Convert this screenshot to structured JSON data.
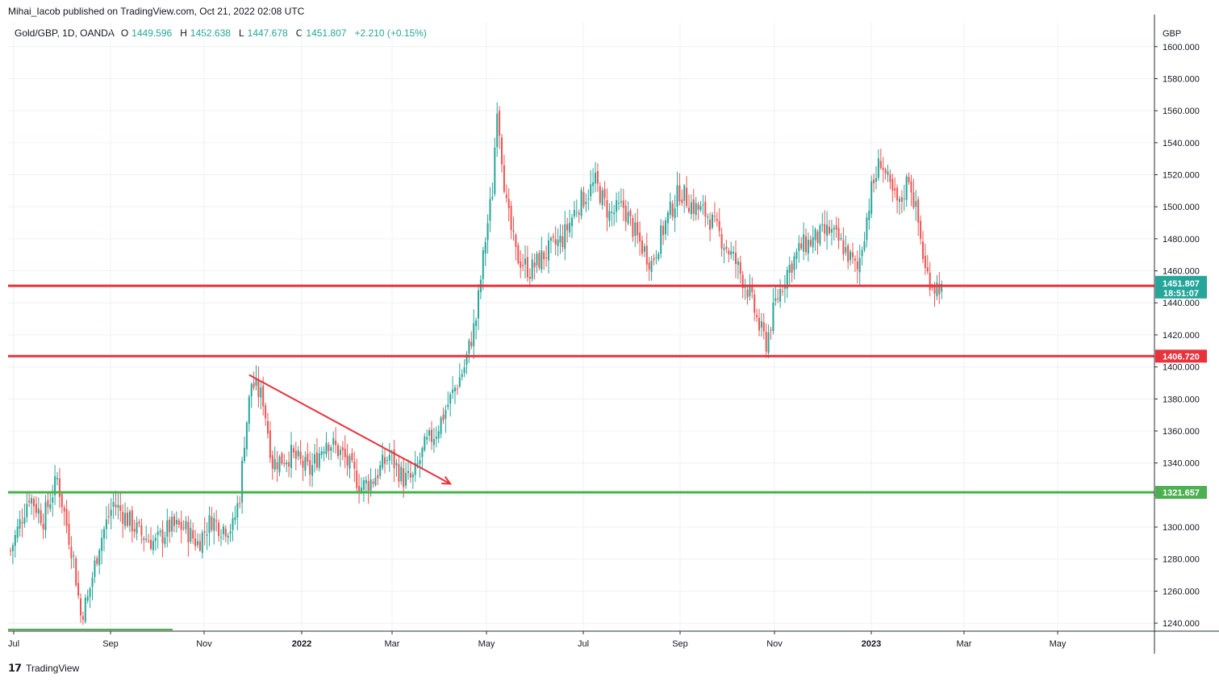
{
  "publisher": "Mihai_Iacob published on TradingView.com, Oct 21, 2022 02:08 UTC",
  "legend": {
    "symbol": "Gold/GBP, 1D, OANDA",
    "open_label": "O",
    "open": "1449.596",
    "high_label": "H",
    "high": "1452.638",
    "low_label": "L",
    "low": "1447.678",
    "close_label": "C",
    "close": "1451.807",
    "change": "+2.210 (+0.15%)"
  },
  "brand": "TradingView",
  "colors": {
    "up": "#26a69a",
    "down": "#ef5350",
    "line_red": "#e8323c",
    "line_green": "#4caf50",
    "grid": "#edf0f5",
    "axis_border": "#2a2e39"
  },
  "chart_data": {
    "type": "candlestick",
    "currency_label": "GBP",
    "ylim": [
      1235,
      1615
    ],
    "y_ticks": [
      "1240.000",
      "1260.000",
      "1280.000",
      "1300.000",
      "1320.000",
      "1340.000",
      "1360.000",
      "1380.000",
      "1400.000",
      "1420.000",
      "1440.000",
      "1460.000",
      "1480.000",
      "1500.000",
      "1520.000",
      "1540.000",
      "1560.000",
      "1580.000",
      "1600.000"
    ],
    "x_ticks": [
      {
        "label": "Jul",
        "bold": false
      },
      {
        "label": "Sep",
        "bold": false
      },
      {
        "label": "Nov",
        "bold": false
      },
      {
        "label": "2022",
        "bold": true
      },
      {
        "label": "Mar",
        "bold": false
      },
      {
        "label": "May",
        "bold": false
      },
      {
        "label": "Jul",
        "bold": false
      },
      {
        "label": "Sep",
        "bold": false
      },
      {
        "label": "Nov",
        "bold": false
      },
      {
        "label": "2023",
        "bold": true
      },
      {
        "label": "Mar",
        "bold": false
      },
      {
        "label": "May",
        "bold": false
      }
    ],
    "price_path": [
      [
        0,
        1285
      ],
      [
        8,
        1320
      ],
      [
        14,
        1305
      ],
      [
        20,
        1330
      ],
      [
        27,
        1280
      ],
      [
        30,
        1245
      ],
      [
        33,
        1255
      ],
      [
        38,
        1290
      ],
      [
        44,
        1315
      ],
      [
        50,
        1305
      ],
      [
        56,
        1295
      ],
      [
        62,
        1290
      ],
      [
        68,
        1300
      ],
      [
        74,
        1300
      ],
      [
        80,
        1290
      ],
      [
        86,
        1305
      ],
      [
        90,
        1300
      ],
      [
        95,
        1300
      ],
      [
        98,
        1320
      ],
      [
        100,
        1355
      ],
      [
        103,
        1390
      ],
      [
        108,
        1380
      ],
      [
        112,
        1340
      ],
      [
        120,
        1345
      ],
      [
        128,
        1335
      ],
      [
        135,
        1355
      ],
      [
        142,
        1345
      ],
      [
        150,
        1325
      ],
      [
        155,
        1330
      ],
      [
        162,
        1345
      ],
      [
        168,
        1330
      ],
      [
        172,
        1330
      ],
      [
        177,
        1350
      ],
      [
        182,
        1360
      ],
      [
        188,
        1380
      ],
      [
        194,
        1400
      ],
      [
        199,
        1430
      ],
      [
        203,
        1480
      ],
      [
        206,
        1510
      ],
      [
        208,
        1565
      ],
      [
        212,
        1500
      ],
      [
        216,
        1470
      ],
      [
        222,
        1460
      ],
      [
        228,
        1470
      ],
      [
        236,
        1480
      ],
      [
        242,
        1500
      ],
      [
        250,
        1515
      ],
      [
        256,
        1495
      ],
      [
        262,
        1500
      ],
      [
        268,
        1480
      ],
      [
        274,
        1465
      ],
      [
        280,
        1490
      ],
      [
        286,
        1510
      ],
      [
        292,
        1500
      ],
      [
        298,
        1495
      ],
      [
        304,
        1480
      ],
      [
        310,
        1465
      ],
      [
        316,
        1445
      ],
      [
        320,
        1425
      ],
      [
        323,
        1415
      ],
      [
        327,
        1440
      ],
      [
        332,
        1460
      ],
      [
        338,
        1475
      ],
      [
        344,
        1480
      ],
      [
        350,
        1485
      ],
      [
        356,
        1475
      ],
      [
        362,
        1460
      ],
      [
        368,
        1510
      ],
      [
        372,
        1530
      ],
      [
        376,
        1510
      ],
      [
        380,
        1500
      ],
      [
        384,
        1520
      ],
      [
        388,
        1490
      ],
      [
        391,
        1460
      ],
      [
        395,
        1450
      ],
      [
        398,
        1451.8
      ]
    ],
    "series_start": "2021-06-28",
    "current_price": "1451.807",
    "countdown": "18:51:07",
    "horizontal_lines": [
      {
        "label": "1450.626",
        "value": 1450.626,
        "color": "#e8323c"
      },
      {
        "label": "1406.720",
        "value": 1406.72,
        "color": "#e8323c"
      },
      {
        "label": "1321.657",
        "value": 1321.657,
        "color": "#4caf50"
      }
    ],
    "trend_arrow": {
      "from": [
        102,
        1395
      ],
      "to": [
        188,
        1327
      ],
      "color": "#e8323c"
    }
  }
}
